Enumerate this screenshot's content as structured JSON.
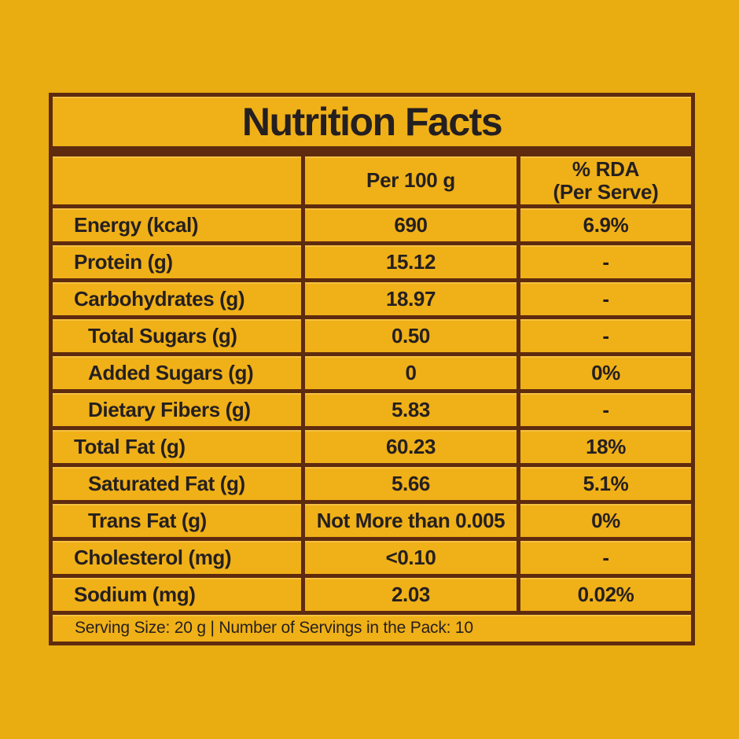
{
  "colors": {
    "page_background": "#E9AC11",
    "cell_background": "#F0B017",
    "border": "#5E2B0F",
    "text": "#241F20"
  },
  "title": "Nutrition Facts",
  "header": {
    "nutrient_col": "",
    "per_100g_col": "Per 100 g",
    "rda_col_line1": "% RDA",
    "rda_col_line2": "(Per Serve)"
  },
  "rows": [
    {
      "label": "Energy (kcal)",
      "per_100g": "690",
      "rda": "6.9%",
      "indent": false
    },
    {
      "label": "Protein (g)",
      "per_100g": "15.12",
      "rda": "-",
      "indent": false
    },
    {
      "label": "Carbohydrates (g)",
      "per_100g": "18.97",
      "rda": "-",
      "indent": false
    },
    {
      "label": "Total Sugars (g)",
      "per_100g": "0.50",
      "rda": "-",
      "indent": true
    },
    {
      "label": "Added Sugars (g)",
      "per_100g": "0",
      "rda": "0%",
      "indent": true
    },
    {
      "label": "Dietary Fibers (g)",
      "per_100g": "5.83",
      "rda": "-",
      "indent": true
    },
    {
      "label": "Total Fat (g)",
      "per_100g": "60.23",
      "rda": "18%",
      "indent": false
    },
    {
      "label": "Saturated Fat (g)",
      "per_100g": "5.66",
      "rda": "5.1%",
      "indent": true
    },
    {
      "label": "Trans Fat (g)",
      "per_100g": "Not More than 0.005",
      "rda": "0%",
      "indent": true
    },
    {
      "label": "Cholesterol (mg)",
      "per_100g": "<0.10",
      "rda": "-",
      "indent": false
    },
    {
      "label": "Sodium (mg)",
      "per_100g": "2.03",
      "rda": "0.02%",
      "indent": false
    }
  ],
  "footer": {
    "serving_info": "Serving Size: 20 g | Number of Servings in the Pack: 10"
  }
}
